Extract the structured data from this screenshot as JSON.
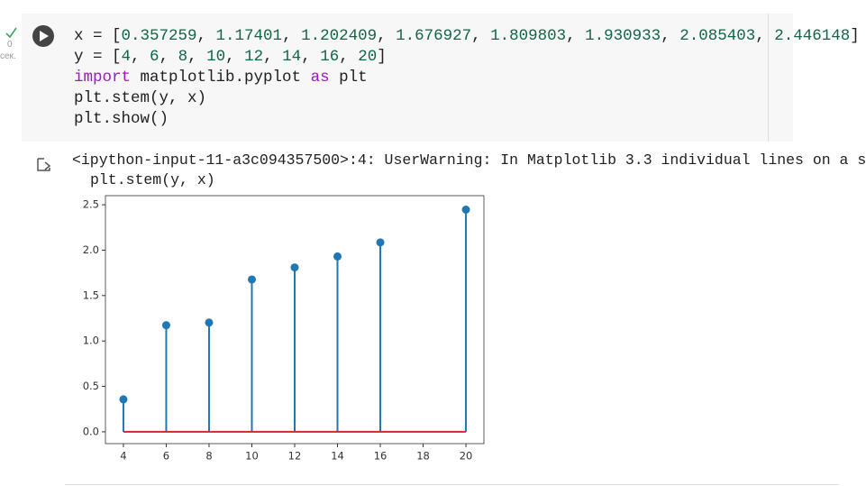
{
  "cell": {
    "status_time": "0",
    "status_unit": "сек.",
    "code": [
      "x = [0.357259, 1.17401, 1.202409, 1.676927, 1.809803, 1.930933, 2.085403, 2.446148]",
      "y = [4, 6, 8, 10, 12, 14, 16, 20]",
      "import matplotlib.pyplot as plt",
      "plt.stem(y, x)",
      "plt.show()"
    ]
  },
  "output": {
    "warning": [
      "<ipython-input-11-a3c094357500>:4: UserWarning: In Matplotlib 3.3 individual lines on a s",
      "plt.stem(y, x)"
    ]
  },
  "chart_data": {
    "type": "stem",
    "x": [
      4,
      6,
      8,
      10,
      12,
      14,
      16,
      20
    ],
    "values": [
      0.357259,
      1.17401,
      1.202409,
      1.676927,
      1.809803,
      1.930933,
      2.085403,
      2.446148
    ],
    "color": "#1f77b4",
    "baseline": 0,
    "baseline_color": "#d62728",
    "xlim": [
      3.16,
      20.84
    ],
    "ylim": [
      -0.13,
      2.6
    ],
    "xticks": [
      4,
      6,
      8,
      10,
      12,
      14,
      16,
      18,
      20
    ],
    "yticks": [
      {
        "value": 0,
        "label": "0.0"
      },
      0.5,
      {
        "value": 1,
        "label": "1.0"
      },
      1.5,
      {
        "value": 2,
        "label": "2.0"
      },
      2.5
    ]
  }
}
